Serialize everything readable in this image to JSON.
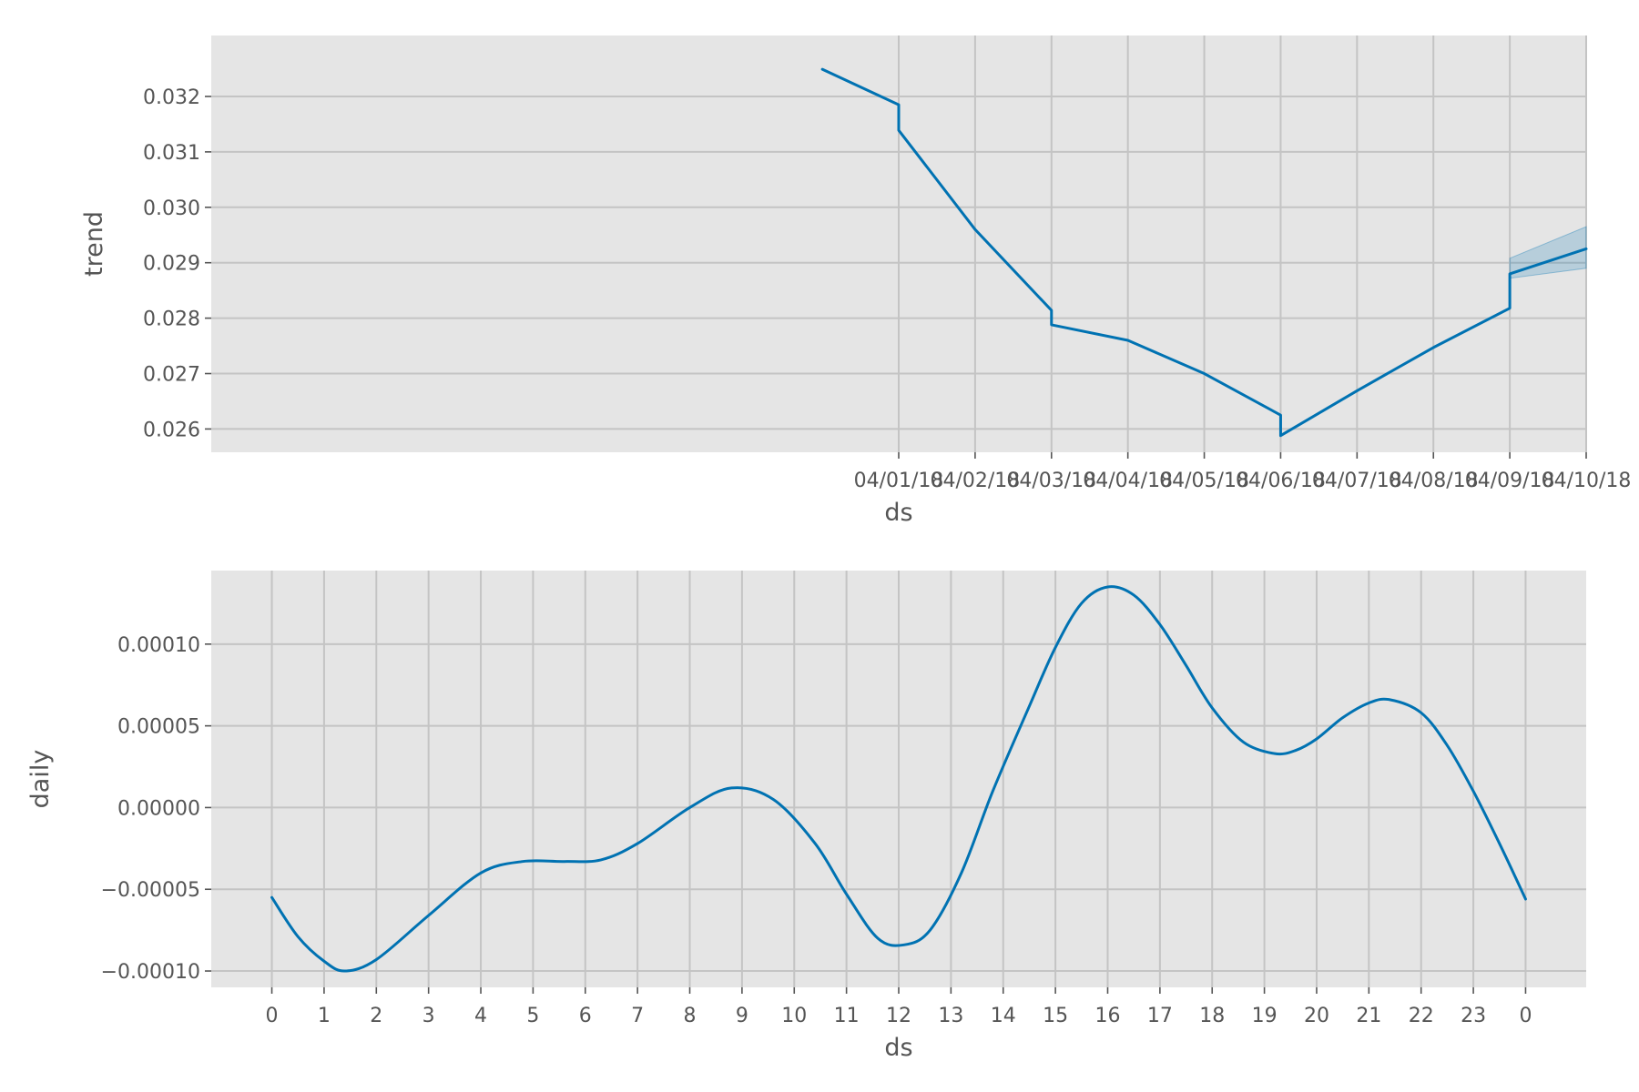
{
  "chart_data": [
    {
      "type": "line",
      "xlabel": "ds",
      "ylabel": "trend",
      "x_axis": "date",
      "xticks": [
        "04/01/18",
        "04/02/18",
        "04/03/18",
        "04/04/18",
        "04/05/18",
        "04/06/18",
        "04/07/18",
        "04/08/18",
        "04/09/18",
        "04/10/18"
      ],
      "xlim": [
        "2018-03-23",
        "2018-04-10"
      ],
      "ylim": [
        0.02558,
        0.0331
      ],
      "yticks": [
        "0.026",
        "0.027",
        "0.028",
        "0.029",
        "0.030",
        "0.031",
        "0.032"
      ],
      "grid": true,
      "series": [
        {
          "x": [
            "2018-03-31",
            "2018-04-01",
            "2018-04-01",
            "2018-04-02",
            "2018-04-03",
            "2018-04-03",
            "2018-04-04",
            "2018-04-05",
            "2018-04-06",
            "2018-04-06",
            "2018-04-07",
            "2018-04-08",
            "2018-04-09",
            "2018-04-09",
            "2018-04-09",
            "2018-04-10"
          ],
          "y": [
            0.03249,
            0.03185,
            0.03139,
            0.0296,
            0.02814,
            0.02788,
            0.0276,
            0.027,
            0.02625,
            0.02588,
            0.02669,
            0.02747,
            0.02818,
            0.02845,
            0.0288,
            0.02925
          ],
          "color": "#0072B2"
        }
      ],
      "uncertainty_band": {
        "x": [
          "2018-04-09",
          "2018-04-09",
          "2018-04-09",
          "2018-04-10"
        ],
        "upper": [
          0.02845,
          0.02875,
          0.02908,
          0.02965
        ],
        "lower": [
          0.02845,
          0.0286,
          0.02872,
          0.0289
        ],
        "color": "#0072B2"
      }
    },
    {
      "type": "line",
      "xlabel": "ds",
      "ylabel": "daily",
      "xticks": [
        "0",
        "1",
        "2",
        "3",
        "4",
        "5",
        "6",
        "7",
        "8",
        "9",
        "10",
        "11",
        "12",
        "13",
        "14",
        "15",
        "16",
        "17",
        "18",
        "19",
        "20",
        "21",
        "22",
        "23",
        "0"
      ],
      "xlim": [
        -1.16,
        25.16
      ],
      "ylim": [
        -0.00011,
        0.000145
      ],
      "yticks": [
        "−0.00010",
        "−0.00005",
        "0.00000",
        "0.00005",
        "0.00010"
      ],
      "grid": true,
      "series": [
        {
          "x": [
            0,
            0.5,
            1,
            1.4,
            2,
            3,
            4,
            4.8,
            5.6,
            6.3,
            7,
            8,
            8.8,
            9.6,
            10.4,
            11,
            11.6,
            12.1,
            12.6,
            13.2,
            13.8,
            14.5,
            15,
            15.5,
            16,
            16.5,
            17,
            17.5,
            18,
            18.6,
            19.2,
            19.6,
            20,
            20.5,
            21,
            21.4,
            22,
            22.5,
            23,
            23.5,
            24
          ],
          "y": [
            -5.5e-05,
            -7.9e-05,
            -9.4e-05,
            -0.0001,
            -9.3e-05,
            -6.6e-05,
            -4e-05,
            -3.3e-05,
            -3.3e-05,
            -3.2e-05,
            -2.2e-05,
            0.0,
            1.2e-05,
            5e-06,
            -2.2e-05,
            -5.3e-05,
            -8e-05,
            -8.4e-05,
            -7.5e-05,
            -4e-05,
            1e-05,
            6.2e-05,
            9.8e-05,
            0.000125,
            0.000135,
            0.00013,
            0.000112,
            8.7e-05,
            6.1e-05,
            4e-05,
            3.3e-05,
            3.5e-05,
            4.2e-05,
            5.5e-05,
            6.4e-05,
            6.6e-05,
            5.8e-05,
            3.8e-05,
            1e-05,
            -2.2e-05,
            -5.6e-05
          ],
          "color": "#0072B2"
        }
      ]
    }
  ]
}
